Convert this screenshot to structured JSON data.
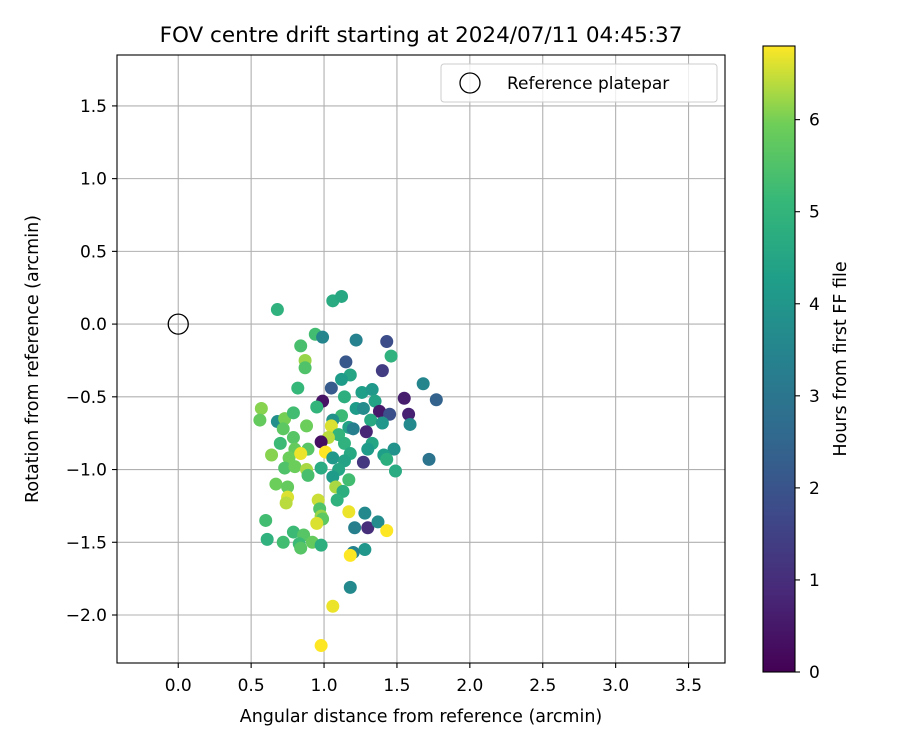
{
  "chart_data": {
    "type": "scatter",
    "title": "FOV centre drift starting at 2024/07/11 04:45:37",
    "xlabel": "Angular distance from reference (arcmin)",
    "ylabel": "Rotation from reference (arcmin)",
    "xlim": [
      -0.42,
      3.75
    ],
    "ylim": [
      -2.33,
      1.85
    ],
    "xticks": [
      "0.0",
      "0.5",
      "1.0",
      "1.5",
      "2.0",
      "2.5",
      "3.0",
      "3.5"
    ],
    "xtick_values": [
      0,
      0.5,
      1,
      1.5,
      2,
      2.5,
      3,
      3.5
    ],
    "yticks": [
      "1.5",
      "1.0",
      "0.5",
      "0.0",
      "−0.5",
      "−1.0",
      "−1.5",
      "−2.0"
    ],
    "ytick_values": [
      1.5,
      1,
      0.5,
      0,
      -0.5,
      -1,
      -1.5,
      -2
    ],
    "grid": true,
    "legend": {
      "label": "Reference platepar",
      "position": "top-right"
    },
    "reference_point": {
      "x": 0.0,
      "y": 0.0
    },
    "colorbar": {
      "label": "Hours from first FF file",
      "range": [
        0,
        6.8
      ],
      "ticks": [
        "0",
        "1",
        "2",
        "3",
        "4",
        "5",
        "6"
      ],
      "tick_values": [
        0,
        1,
        2,
        3,
        4,
        5,
        6
      ],
      "colormap": "viridis"
    },
    "points": [
      [
        0.68,
        0.1,
        4.9
      ],
      [
        1.06,
        0.16,
        4.7
      ],
      [
        1.12,
        0.19,
        4.6
      ],
      [
        0.94,
        -0.07,
        5.3
      ],
      [
        0.99,
        -0.09,
        3.5
      ],
      [
        1.22,
        -0.11,
        3.4
      ],
      [
        1.43,
        -0.12,
        1.8
      ],
      [
        0.84,
        -0.15,
        5.4
      ],
      [
        1.46,
        -0.22,
        4.9
      ],
      [
        0.87,
        -0.25,
        6.2
      ],
      [
        1.15,
        -0.26,
        2.1
      ],
      [
        0.87,
        -0.3,
        5.5
      ],
      [
        1.4,
        -0.32,
        1.4
      ],
      [
        1.18,
        -0.35,
        4.5
      ],
      [
        1.12,
        -0.38,
        4.2
      ],
      [
        1.68,
        -0.41,
        3.5
      ],
      [
        0.82,
        -0.44,
        5.1
      ],
      [
        1.05,
        -0.44,
        2.2
      ],
      [
        1.26,
        -0.47,
        4.3
      ],
      [
        1.33,
        -0.45,
        4.1
      ],
      [
        1.55,
        -0.51,
        0.6
      ],
      [
        1.77,
        -0.52,
        2.4
      ],
      [
        0.99,
        -0.53,
        0.4
      ],
      [
        1.14,
        -0.5,
        4.8
      ],
      [
        1.35,
        -0.53,
        4.4
      ],
      [
        0.57,
        -0.58,
        6.1
      ],
      [
        0.95,
        -0.57,
        5.0
      ],
      [
        1.22,
        -0.58,
        4.2
      ],
      [
        1.27,
        -0.58,
        3.7
      ],
      [
        1.38,
        -0.6,
        0.5
      ],
      [
        1.45,
        -0.62,
        1.9
      ],
      [
        1.58,
        -0.62,
        0.7
      ],
      [
        1.12,
        -0.63,
        5.2
      ],
      [
        0.56,
        -0.66,
        5.8
      ],
      [
        0.68,
        -0.67,
        3.8
      ],
      [
        0.73,
        -0.65,
        6.0
      ],
      [
        0.79,
        -0.61,
        5.3
      ],
      [
        1.06,
        -0.66,
        3.9
      ],
      [
        1.32,
        -0.66,
        4.6
      ],
      [
        1.4,
        -0.68,
        4.0
      ],
      [
        1.59,
        -0.69,
        3.6
      ],
      [
        0.72,
        -0.72,
        5.7
      ],
      [
        0.88,
        -0.7,
        5.9
      ],
      [
        1.05,
        -0.7,
        6.6
      ],
      [
        1.17,
        -0.71,
        4.4
      ],
      [
        1.2,
        -0.72,
        3.3
      ],
      [
        1.29,
        -0.74,
        0.8
      ],
      [
        1.1,
        -0.76,
        5.0
      ],
      [
        1.03,
        -0.78,
        6.4
      ],
      [
        0.79,
        -0.78,
        5.6
      ],
      [
        0.7,
        -0.82,
        5.2
      ],
      [
        0.98,
        -0.81,
        0.3
      ],
      [
        1.14,
        -0.82,
        4.9
      ],
      [
        1.33,
        -0.82,
        4.5
      ],
      [
        1.3,
        -0.86,
        4.2
      ],
      [
        1.48,
        -0.86,
        3.9
      ],
      [
        0.8,
        -0.86,
        5.8
      ],
      [
        0.89,
        -0.86,
        5.6
      ],
      [
        1.01,
        -0.88,
        6.8
      ],
      [
        1.18,
        -0.89,
        4.6
      ],
      [
        0.64,
        -0.9,
        6.1
      ],
      [
        0.76,
        -0.92,
        5.9
      ],
      [
        0.84,
        -0.89,
        6.7
      ],
      [
        1.06,
        -0.92,
        4.1
      ],
      [
        1.14,
        -0.94,
        4.4
      ],
      [
        1.27,
        -0.95,
        1.2
      ],
      [
        1.41,
        -0.9,
        4.3
      ],
      [
        1.43,
        -0.93,
        4.8
      ],
      [
        1.72,
        -0.93,
        2.9
      ],
      [
        0.73,
        -0.99,
        5.5
      ],
      [
        0.8,
        -0.98,
        5.9
      ],
      [
        0.88,
        -1.0,
        6.3
      ],
      [
        0.98,
        -0.99,
        4.7
      ],
      [
        1.1,
        -1.0,
        4.5
      ],
      [
        1.49,
        -1.01,
        4.7
      ],
      [
        0.89,
        -1.04,
        5.4
      ],
      [
        1.06,
        -1.05,
        4.2
      ],
      [
        1.17,
        -1.07,
        5.3
      ],
      [
        0.67,
        -1.1,
        5.9
      ],
      [
        0.75,
        -1.12,
        5.8
      ],
      [
        1.08,
        -1.12,
        6.3
      ],
      [
        1.13,
        -1.15,
        4.8
      ],
      [
        0.75,
        -1.19,
        6.6
      ],
      [
        0.74,
        -1.23,
        6.4
      ],
      [
        0.96,
        -1.21,
        6.5
      ],
      [
        1.09,
        -1.21,
        4.9
      ],
      [
        0.97,
        -1.27,
        5.5
      ],
      [
        1.17,
        -1.29,
        6.7
      ],
      [
        1.28,
        -1.3,
        3.6
      ],
      [
        0.6,
        -1.35,
        5.3
      ],
      [
        0.98,
        -1.32,
        6.2
      ],
      [
        0.99,
        -1.34,
        5.7
      ],
      [
        0.95,
        -1.37,
        6.6
      ],
      [
        1.21,
        -1.4,
        3.3
      ],
      [
        1.3,
        -1.4,
        1.0
      ],
      [
        1.37,
        -1.36,
        3.7
      ],
      [
        1.43,
        -1.42,
        6.8
      ],
      [
        0.79,
        -1.43,
        5.2
      ],
      [
        0.86,
        -1.45,
        5.6
      ],
      [
        0.61,
        -1.48,
        4.9
      ],
      [
        0.72,
        -1.5,
        5.3
      ],
      [
        0.83,
        -1.51,
        5.2
      ],
      [
        0.92,
        -1.5,
        5.8
      ],
      [
        0.98,
        -1.52,
        4.8
      ],
      [
        0.84,
        -1.54,
        5.6
      ],
      [
        1.28,
        -1.55,
        4.0
      ],
      [
        1.2,
        -1.57,
        3.4
      ],
      [
        1.18,
        -1.59,
        6.8
      ],
      [
        1.18,
        -1.81,
        3.6
      ],
      [
        1.06,
        -1.94,
        6.7
      ],
      [
        0.98,
        -2.21,
        6.8
      ]
    ]
  }
}
